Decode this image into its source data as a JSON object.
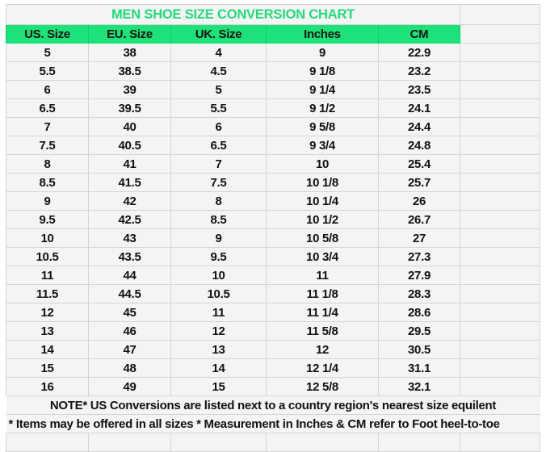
{
  "title": "MEN SHOE SIZE CONVERSION CHART",
  "colors": {
    "accent": "#1de27a",
    "title_text": "#1fdc7a"
  },
  "columns": [
    "US. Size",
    "EU. Size",
    "UK. Size",
    "Inches",
    "CM"
  ],
  "rows": [
    [
      "5",
      "38",
      "4",
      "9",
      "22.9"
    ],
    [
      "5.5",
      "38.5",
      "4.5",
      "9 1/8",
      "23.2"
    ],
    [
      "6",
      "39",
      "5",
      "9 1/4",
      "23.5"
    ],
    [
      "6.5",
      "39.5",
      "5.5",
      "9 1/2",
      "24.1"
    ],
    [
      "7",
      "40",
      "6",
      "9 5/8",
      "24.4"
    ],
    [
      "7.5",
      "40.5",
      "6.5",
      "9 3/4",
      "24.8"
    ],
    [
      "8",
      "41",
      "7",
      "10",
      "25.4"
    ],
    [
      "8.5",
      "41.5",
      "7.5",
      "10 1/8",
      "25.7"
    ],
    [
      "9",
      "42",
      "8",
      "10 1/4",
      "26"
    ],
    [
      "9.5",
      "42.5",
      "8.5",
      "10 1/2",
      "26.7"
    ],
    [
      "10",
      "43",
      "9",
      "10 5/8",
      "27"
    ],
    [
      "10.5",
      "43.5",
      "9.5",
      "10 3/4",
      "27.3"
    ],
    [
      "11",
      "44",
      "10",
      "11",
      "27.9"
    ],
    [
      "11.5",
      "44.5",
      "10.5",
      "11 1/8",
      "28.3"
    ],
    [
      "12",
      "45",
      "11",
      "11 1/4",
      "28.6"
    ],
    [
      "13",
      "46",
      "12",
      "11 5/8",
      "29.5"
    ],
    [
      "14",
      "47",
      "13",
      "12",
      "30.5"
    ],
    [
      "15",
      "48",
      "14",
      "12 1/4",
      "31.1"
    ],
    [
      "16",
      "49",
      "15",
      "12 5/8",
      "32.1"
    ]
  ],
  "notes": [
    "NOTE* US Conversions are listed next to a country region's nearest size equilent",
    "* Items may be offered in all sizes * Measurement in Inches & CM refer to Foot heel-to-toe"
  ]
}
